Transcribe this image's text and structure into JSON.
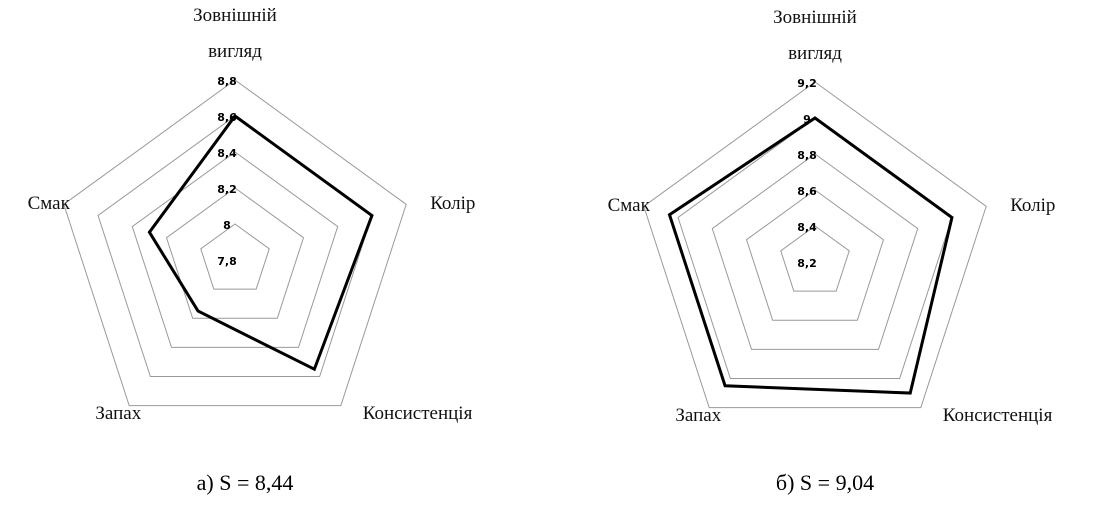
{
  "chart_data": [
    {
      "type": "radar",
      "title": "а) S = 8,44",
      "categories": [
        "Зовнішній вигляд",
        "Колір",
        "Консистенція",
        "Запах",
        "Смак"
      ],
      "values": [
        8.6,
        8.6,
        8.55,
        8.15,
        8.3
      ],
      "color": "#000000",
      "ylim": [
        7.8,
        8.8
      ],
      "yticks": [
        {
          "value": 7.8,
          "label": "7,8"
        },
        8,
        {
          "value": 8.2,
          "label": "8,2"
        },
        {
          "value": 8.4,
          "label": "8,4"
        },
        {
          "value": 8.6,
          "label": "8,6"
        },
        {
          "value": 8.8,
          "label": "8,8"
        }
      ],
      "grid": true
    },
    {
      "type": "radar",
      "title": "б) S = 9,04",
      "categories": [
        "Зовнішній вигляд",
        "Колір",
        "Консистенція",
        "Запах",
        "Смак"
      ],
      "values": [
        9.0,
        9.0,
        9.1,
        9.05,
        9.05
      ],
      "color": "#000000",
      "ylim": [
        8.2,
        9.2
      ],
      "yticks": [
        {
          "value": 8.2,
          "label": "8,2"
        },
        {
          "value": 8.4,
          "label": "8,4"
        },
        {
          "value": 8.6,
          "label": "8,6"
        },
        {
          "value": 8.8,
          "label": "8,8"
        },
        9,
        {
          "value": 9.2,
          "label": "9,2"
        }
      ],
      "grid": true
    }
  ]
}
